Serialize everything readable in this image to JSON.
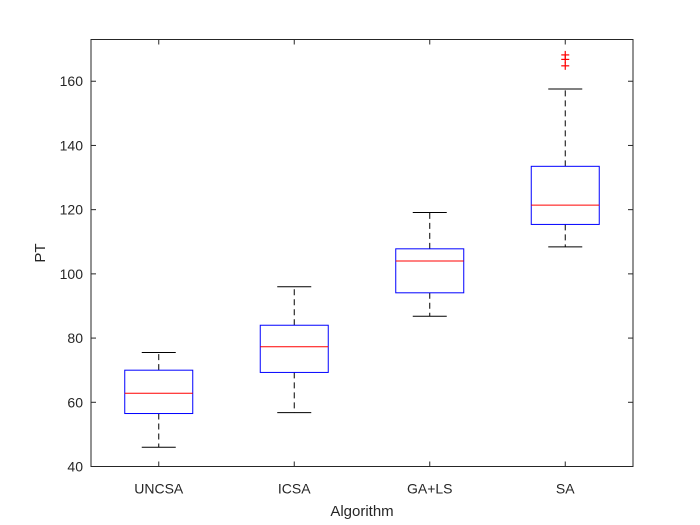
{
  "chart_data": {
    "type": "box",
    "xlabel": "Algorithm",
    "ylabel": "PT",
    "categories": [
      "UNCSA",
      "ICSA",
      "GA+LS",
      "SA"
    ],
    "ylim": [
      40,
      173
    ],
    "yticks": [
      "40",
      "60",
      "80",
      "100",
      "120",
      "140",
      "160"
    ],
    "grid": false,
    "legend": "none",
    "boxes": [
      {
        "category": "UNCSA",
        "whisker_low": 46,
        "q1": 56.5,
        "median": 62.8,
        "q3": 70,
        "whisker_high": 75.5,
        "outliers": []
      },
      {
        "category": "ICSA",
        "whisker_low": 56.8,
        "q1": 69.3,
        "median": 77.3,
        "q3": 84,
        "whisker_high": 96,
        "outliers": []
      },
      {
        "category": "GA+LS",
        "whisker_low": 86.8,
        "q1": 94.1,
        "median": 104,
        "q3": 107.8,
        "whisker_high": 119.1,
        "outliers": []
      },
      {
        "category": "SA",
        "whisker_low": 108.4,
        "q1": 115.4,
        "median": 121.4,
        "q3": 133.5,
        "whisker_high": 157.6,
        "outliers": [
          164.8,
          166.8,
          168.2
        ]
      }
    ],
    "colors": {
      "box": "#0000ff",
      "median": "#ff0000",
      "whisker": "#000000",
      "outlier": "#ff0000",
      "axes": "#262626"
    }
  }
}
